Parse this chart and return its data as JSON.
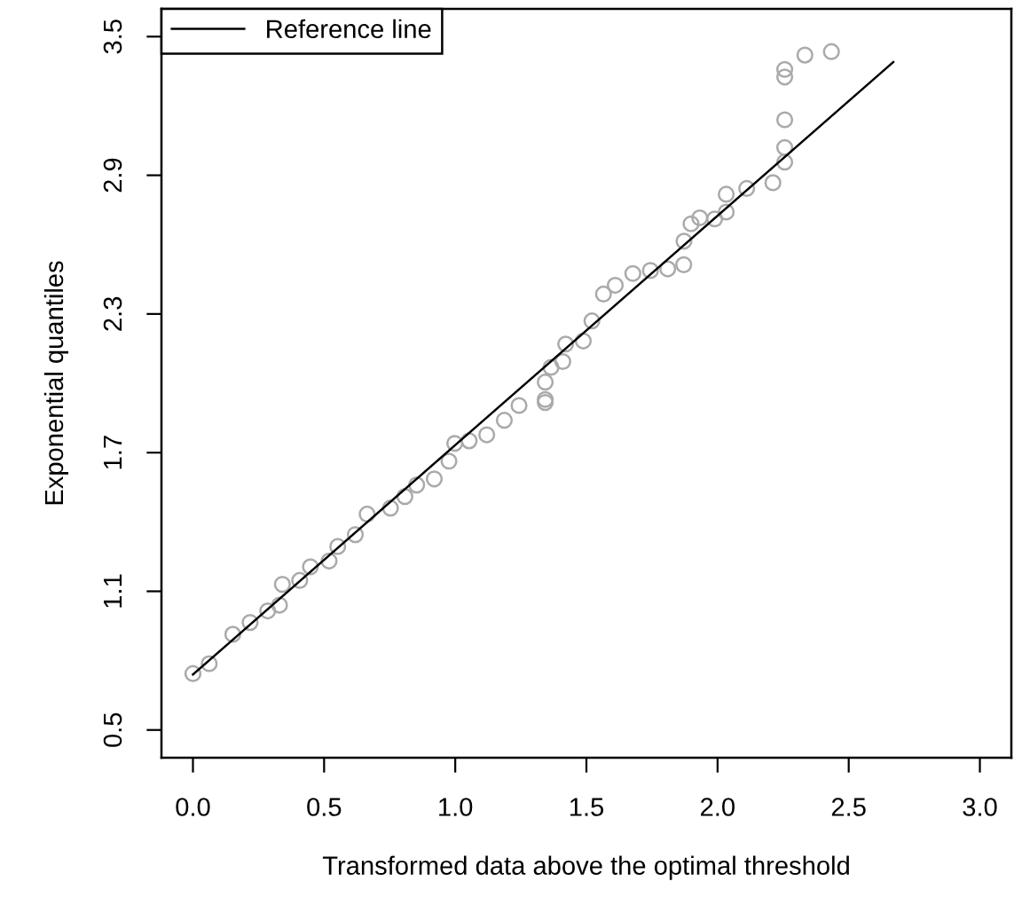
{
  "chart_data": {
    "type": "scatter",
    "xlabel": "Transformed data above the optimal threshold",
    "ylabel": "Exponential quantiles",
    "xlim": [
      -0.12,
      3.12
    ],
    "ylim": [
      0.38,
      3.62
    ],
    "xticks": [
      {
        "value": 0,
        "label": "0.0"
      },
      0.5,
      {
        "value": 1,
        "label": "1.0"
      },
      1.5,
      {
        "value": 2,
        "label": "2.0"
      },
      2.5,
      {
        "value": 3,
        "label": "3.0"
      }
    ],
    "yticks": [
      0.5,
      1.1,
      1.7,
      2.3,
      2.9,
      3.5
    ],
    "grid": false,
    "legend": "top left",
    "series": [
      {
        "marker": "circle",
        "color": "#aaaaaa",
        "x": [
          0,
          0.062,
          0.152,
          0.218,
          0.285,
          0.33,
          0.341,
          0.407,
          0.448,
          0.519,
          0.552,
          0.619,
          0.664,
          0.753,
          0.808,
          0.853,
          0.92,
          0.976,
          0.998,
          1.053,
          1.12,
          1.187,
          1.243,
          1.343,
          1.343,
          1.343,
          1.365,
          1.41,
          1.421,
          1.488,
          1.521,
          1.565,
          1.61,
          1.677,
          1.744,
          1.81,
          1.871,
          1.872,
          1.899,
          1.932,
          1.989,
          2.033,
          2.033,
          2.111,
          2.211,
          2.256,
          2.256,
          2.256,
          2.256,
          2.256,
          2.333,
          2.434
        ],
        "values": [
          0.744,
          0.787,
          0.914,
          0.965,
          1.015,
          1.04,
          1.13,
          1.147,
          1.206,
          1.231,
          1.294,
          1.345,
          1.434,
          1.46,
          1.51,
          1.56,
          1.586,
          1.663,
          1.74,
          1.751,
          1.777,
          1.84,
          1.904,
          1.917,
          1.93,
          2.005,
          2.069,
          2.094,
          2.17,
          2.183,
          2.27,
          2.386,
          2.424,
          2.475,
          2.488,
          2.495,
          2.513,
          2.615,
          2.69,
          2.716,
          2.711,
          2.741,
          2.818,
          2.843,
          2.868,
          2.957,
          3.02,
          3.14,
          3.325,
          3.358,
          3.42,
          3.435
        ]
      },
      {
        "type": "line",
        "name": "Reference line",
        "color": "#000000",
        "x": [
          0,
          2.67
        ],
        "values": [
          0.74,
          3.39
        ]
      }
    ]
  }
}
